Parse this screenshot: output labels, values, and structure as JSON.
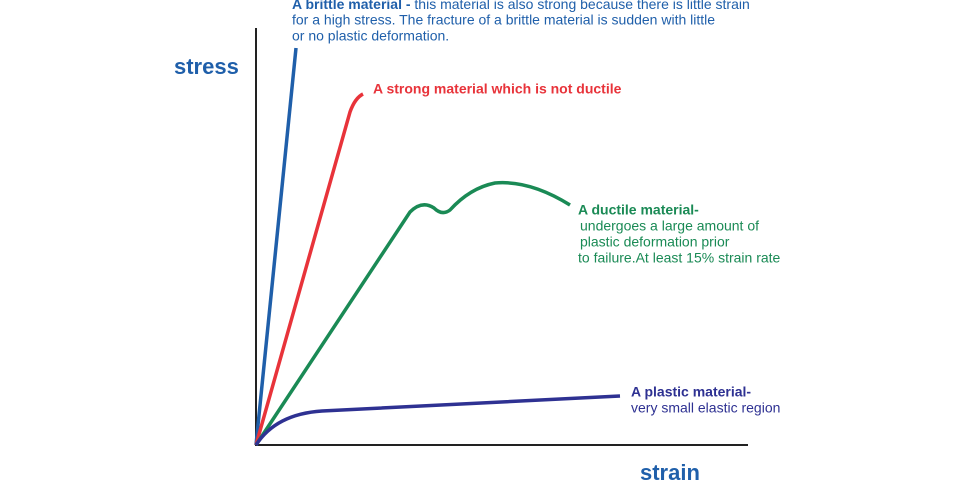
{
  "axes": {
    "y_label": "stress",
    "x_label": "strain"
  },
  "curves": [
    {
      "title": "A brittle material -",
      "lines": [
        "this material is also strong because there is little strain",
        "for a high stress. The fracture of a brittle material is sudden with little",
        "or no plastic deformation."
      ]
    },
    {
      "title": "A strong material which is not ductile",
      "lines": []
    },
    {
      "title": "A ductile material-",
      "lines": [
        "undergoes a large amount of",
        "plastic deformation prior",
        "to failure.At least 15% strain rate"
      ]
    },
    {
      "title": "A plastic material-",
      "lines": [
        "very small elastic region"
      ]
    }
  ]
}
